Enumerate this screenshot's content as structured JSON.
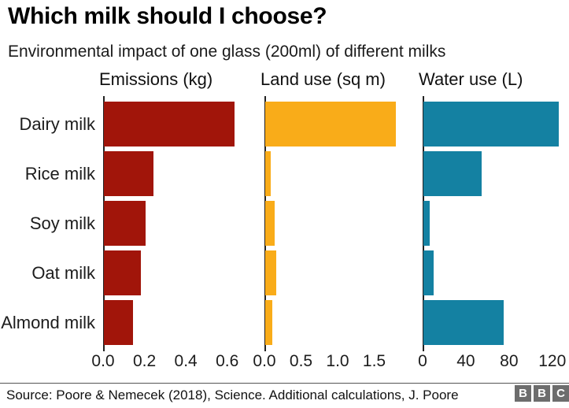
{
  "page_title": "Which milk should I choose?",
  "subtitle": "Environmental impact of one glass (200ml) of different milks",
  "chart_data": {
    "type": "bar",
    "orientation": "horizontal",
    "grid": false,
    "legend": false,
    "categories": [
      "Dairy milk",
      "Rice milk",
      "Soy milk",
      "Oat milk",
      "Almond milk"
    ],
    "charts": [
      {
        "title": "Emissions (kg)",
        "color": "#a1150a",
        "xlim": [
          0,
          0.7
        ],
        "tick_values": [
          0,
          0.2,
          0.4,
          0.6
        ],
        "tick_labels": [
          "0.0",
          "0.2",
          "0.4",
          "0.6"
        ],
        "values": [
          0.63,
          0.24,
          0.2,
          0.18,
          0.14
        ]
      },
      {
        "title": "Land use (sq m)",
        "color": "#f9ac19",
        "xlim": [
          0,
          2.0
        ],
        "tick_values": [
          0,
          0.5,
          1.0,
          1.5
        ],
        "tick_labels": [
          "0.0",
          "0.5",
          "1.0",
          "1.5"
        ],
        "values": [
          1.79,
          0.07,
          0.13,
          0.15,
          0.1
        ]
      },
      {
        "title": "Water use (L)",
        "color": "#1481a2",
        "xlim": [
          0,
          126
        ],
        "tick_values": [
          0,
          40,
          80,
          120
        ],
        "tick_labels": [
          "0",
          "40",
          "80",
          "120"
        ],
        "values": [
          125.6,
          54.0,
          5.6,
          9.6,
          74.3
        ]
      }
    ]
  },
  "footer": {
    "source": "Source: Poore & Nemecek (2018), Science. Additional calculations, J. Poore",
    "logo_letters": [
      "B",
      "B",
      "C"
    ]
  },
  "colors": {
    "emissions_red": "#a1150a",
    "land_orange": "#f9ac19",
    "water_teal": "#1481a2",
    "axis": "#222222",
    "logo_gray": "#6d6d6d"
  }
}
